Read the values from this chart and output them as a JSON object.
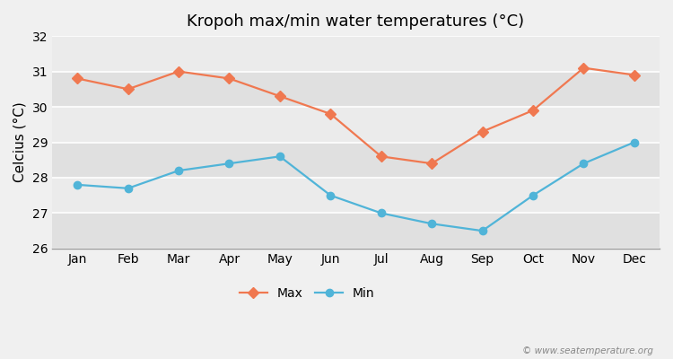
{
  "title": "Kropoh max/min water temperatures (°C)",
  "ylabel": "Celcius (°C)",
  "months": [
    "Jan",
    "Feb",
    "Mar",
    "Apr",
    "May",
    "Jun",
    "Jul",
    "Aug",
    "Sep",
    "Oct",
    "Nov",
    "Dec"
  ],
  "max_temps": [
    30.8,
    30.5,
    31.0,
    30.8,
    30.3,
    29.8,
    28.6,
    28.4,
    29.3,
    29.9,
    31.1,
    30.9
  ],
  "min_temps": [
    27.8,
    27.7,
    28.2,
    28.4,
    28.6,
    27.5,
    27.0,
    26.7,
    26.5,
    27.5,
    28.4,
    29.0
  ],
  "max_color": "#f07850",
  "min_color": "#50b4d8",
  "fig_background": "#f0f0f0",
  "plot_background_light": "#ebebeb",
  "plot_background_dark": "#e0e0e0",
  "grid_color": "#ffffff",
  "ylim": [
    26,
    32
  ],
  "yticks": [
    26,
    27,
    28,
    29,
    30,
    31,
    32
  ],
  "legend_labels": [
    "Max",
    "Min"
  ],
  "watermark": "© www.seatemperature.org",
  "title_fontsize": 13,
  "ylabel_fontsize": 11,
  "tick_fontsize": 10,
  "legend_fontsize": 10,
  "watermark_fontsize": 7.5
}
